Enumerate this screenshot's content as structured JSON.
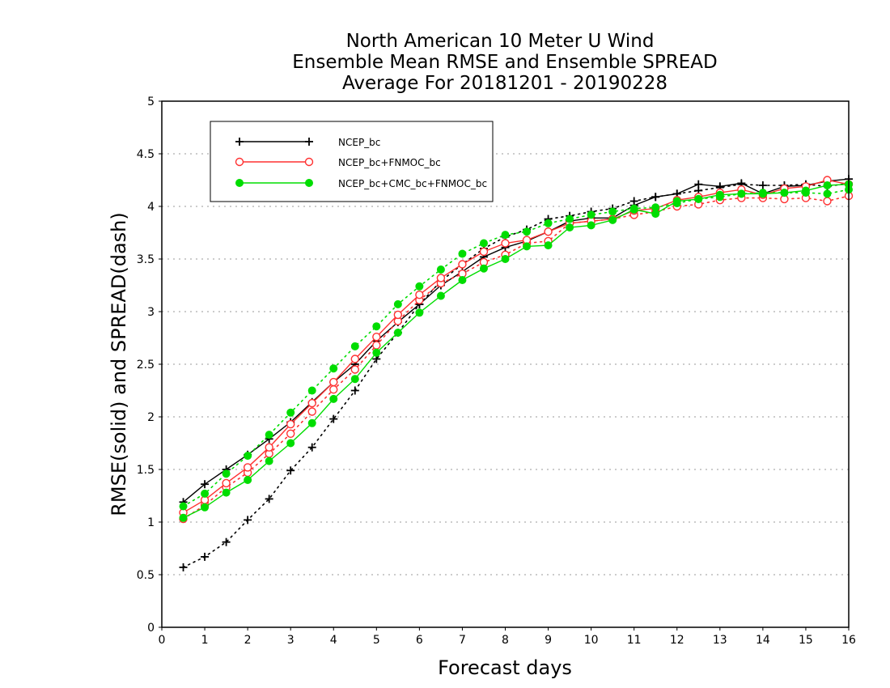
{
  "chart_data": {
    "type": "line",
    "title": [
      "North American 10 Meter U Wind",
      "Ensemble Mean RMSE and Ensemble SPREAD",
      "Average For 20181201 - 20190228"
    ],
    "xlabel": "Forecast days",
    "ylabel": "RMSE(solid) and SPREAD(dash)",
    "xlim": [
      0,
      16
    ],
    "ylim": [
      0,
      5
    ],
    "xticks": [
      "0",
      "1",
      "2",
      "3",
      "4",
      "5",
      "6",
      "7",
      "8",
      "9",
      "10",
      "11",
      "12",
      "13",
      "14",
      "15",
      "16"
    ],
    "yticks": [
      "0",
      "0.5",
      "1",
      "1.5",
      "2",
      "2.5",
      "3",
      "3.5",
      "4",
      "4.5",
      "5"
    ],
    "grid": "horizontal dotted",
    "legend_position": "top-left",
    "x": [
      0.5,
      1,
      1.5,
      2,
      2.5,
      3,
      3.5,
      4,
      4.5,
      5,
      5.5,
      6,
      6.5,
      7,
      7.5,
      8,
      8.5,
      9,
      9.5,
      10,
      10.5,
      11,
      11.5,
      12,
      12.5,
      13,
      13.5,
      14,
      14.5,
      15,
      15.5,
      16
    ],
    "series": [
      {
        "name": "NCEP_bc",
        "color": "#000000",
        "marker": "plus",
        "rmse": [
          1.19,
          1.36,
          1.5,
          1.64,
          1.79,
          1.95,
          2.14,
          2.33,
          2.5,
          2.72,
          2.9,
          3.07,
          3.25,
          3.38,
          3.52,
          3.61,
          3.67,
          3.76,
          3.86,
          3.89,
          3.89,
          4.01,
          4.09,
          4.12,
          4.21,
          4.19,
          4.22,
          4.12,
          4.19,
          4.2,
          4.24,
          4.26
        ],
        "spread": [
          0.57,
          0.67,
          0.81,
          1.02,
          1.22,
          1.49,
          1.71,
          1.98,
          2.25,
          2.55,
          2.8,
          3.07,
          3.29,
          3.45,
          3.6,
          3.71,
          3.78,
          3.88,
          3.91,
          3.95,
          3.98,
          4.05,
          4.09,
          4.12,
          4.15,
          4.18,
          4.21,
          4.2,
          4.2,
          4.21,
          4.19,
          4.22
        ]
      },
      {
        "name": "NCEP_bc+FNMOC_bc",
        "color": "#ff3030",
        "marker": "open-circle",
        "rmse": [
          1.09,
          1.21,
          1.37,
          1.52,
          1.71,
          1.93,
          2.13,
          2.33,
          2.55,
          2.76,
          2.97,
          3.16,
          3.32,
          3.45,
          3.57,
          3.65,
          3.68,
          3.76,
          3.84,
          3.86,
          3.88,
          3.96,
          3.98,
          4.06,
          4.09,
          4.13,
          4.16,
          4.11,
          4.17,
          4.19,
          4.25,
          4.21
        ],
        "spread": [
          1.03,
          1.16,
          1.33,
          1.47,
          1.65,
          1.84,
          2.05,
          2.26,
          2.45,
          2.68,
          2.91,
          3.11,
          3.27,
          3.36,
          3.47,
          3.54,
          3.65,
          3.67,
          3.84,
          3.86,
          3.88,
          3.92,
          3.95,
          4.0,
          4.02,
          4.06,
          4.08,
          4.08,
          4.07,
          4.08,
          4.05,
          4.1
        ]
      },
      {
        "name": "NCEP_bc+CMC_bc+FNMOC_bc",
        "color": "#00dd00",
        "marker": "filled-circle",
        "rmse": [
          1.04,
          1.14,
          1.28,
          1.4,
          1.58,
          1.75,
          1.94,
          2.17,
          2.36,
          2.61,
          2.8,
          2.99,
          3.15,
          3.3,
          3.41,
          3.5,
          3.62,
          3.63,
          3.8,
          3.82,
          3.87,
          3.97,
          3.93,
          4.05,
          4.07,
          4.11,
          4.12,
          4.12,
          4.13,
          4.15,
          4.2,
          4.21
        ],
        "spread": [
          1.15,
          1.27,
          1.46,
          1.63,
          1.83,
          2.04,
          2.25,
          2.46,
          2.67,
          2.86,
          3.07,
          3.24,
          3.4,
          3.55,
          3.65,
          3.73,
          3.76,
          3.84,
          3.88,
          3.92,
          3.95,
          3.98,
          3.99,
          4.03,
          4.07,
          4.09,
          4.12,
          4.13,
          4.13,
          4.13,
          4.12,
          4.16
        ]
      }
    ]
  }
}
